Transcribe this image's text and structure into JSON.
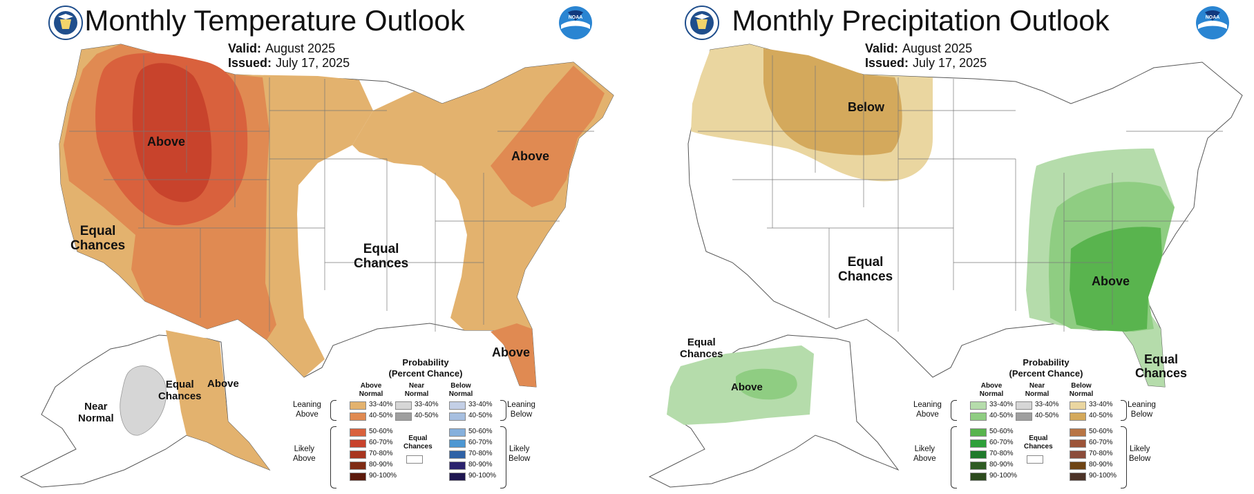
{
  "temperature": {
    "title": "Monthly Temperature Outlook",
    "valid_label": "Valid:",
    "valid_value": "August 2025",
    "issued_label": "Issued:",
    "issued_value": "July 17, 2025",
    "map_labels": {
      "above_west": "Above",
      "above_northeast": "Above",
      "above_florida": "Above",
      "equal_chances_west": "Equal\nChances",
      "equal_chances_central": "Equal\nChances",
      "equal_chances_alaska": "Equal\nChances",
      "above_alaska": "Above",
      "near_normal_alaska": "Near\nNormal"
    }
  },
  "precipitation": {
    "title": "Monthly Precipitation Outlook",
    "valid_label": "Valid:",
    "valid_value": "August 2025",
    "issued_label": "Issued:",
    "issued_value": "July 17, 2025",
    "map_labels": {
      "below_north": "Below",
      "above_southeast": "Above",
      "equal_chances_central": "Equal\nChances",
      "equal_chances_alaska": "Equal\nChances",
      "above_alaska": "Above",
      "equal_chances_florida": "Equal\nChances"
    }
  },
  "legend": {
    "title": "Probability\n(Percent Chance)",
    "col_above": "Above\nNormal",
    "col_near": "Near\nNormal",
    "col_below": "Below\nNormal",
    "leaning_above": "Leaning\nAbove",
    "likely_above": "Likely\nAbove",
    "leaning_below": "Leaning\nBelow",
    "likely_below": "Likely\nBelow",
    "equal_chances": "Equal\nChances",
    "ranges": [
      "33-40%",
      "40-50%",
      "50-60%",
      "60-70%",
      "70-80%",
      "80-90%",
      "90-100%"
    ],
    "near_ranges": [
      "33-40%",
      "40-50%"
    ],
    "temp_above_colors": [
      "#e3b26e",
      "#e08a52",
      "#d9613d",
      "#c8432c",
      "#a8351f",
      "#7f2b14",
      "#5c1a0b"
    ],
    "temp_below_colors": [
      "#c3cfe6",
      "#a7bfe0",
      "#86b0dc",
      "#4d97d2",
      "#2f62a6",
      "#2a226d",
      "#1f1650"
    ],
    "precip_above_colors": [
      "#b5dcab",
      "#8fcd82",
      "#59b44e",
      "#2ea03a",
      "#1f7a2b",
      "#2e5b23",
      "#2c4a1d"
    ],
    "precip_below_colors": [
      "#ead6a0",
      "#d4a95c",
      "#b87545",
      "#9c5438",
      "#8b4c3a",
      "#6e4414",
      "#4c3328"
    ],
    "near_colors": [
      "#d6d6d6",
      "#9f9f9f"
    ]
  }
}
